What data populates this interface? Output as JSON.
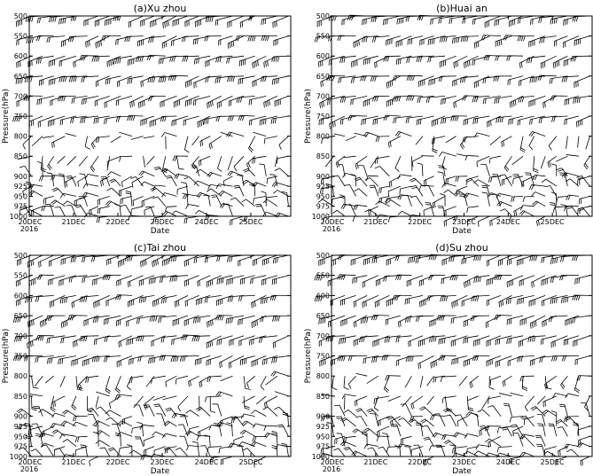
{
  "figure": {
    "xlabel": "Date",
    "ylabel": "Pressure(hPa)",
    "year_label": "2016"
  },
  "chart_data": [
    {
      "type": "wind-barb",
      "title": "(a)Xu zhou",
      "xlabel": "Date",
      "ylabel": "Pressure(hPa)",
      "x_ticks": [
        "20DEC",
        "21DEC",
        "22DEC",
        "23DEC",
        "24DEC",
        "25DEC"
      ],
      "x_sublabel": "2016",
      "y_ticks": [
        500,
        550,
        600,
        650,
        700,
        750,
        800,
        850,
        900,
        925,
        950,
        975,
        1000
      ],
      "xlim": [
        0,
        5.9
      ],
      "ylim": [
        1000,
        500
      ],
      "style": {
        "seed": 3
      }
    },
    {
      "type": "wind-barb",
      "title": "(b)Huai an",
      "xlabel": "Date",
      "ylabel": "Pressure(hPa)",
      "x_ticks": [
        "20DEC",
        "21DEC",
        "22DEC",
        "23DEC",
        "24DEC",
        "25DEC"
      ],
      "x_sublabel": "2016",
      "y_ticks": [
        500,
        550,
        600,
        650,
        700,
        750,
        800,
        850,
        900,
        925,
        950,
        975,
        1000
      ],
      "xlim": [
        0,
        5.9
      ],
      "ylim": [
        1000,
        500
      ],
      "style": {
        "seed": 7
      }
    },
    {
      "type": "wind-barb",
      "title": "(c)Tai zhou",
      "xlabel": "Date",
      "ylabel": "Pressure(hPa)",
      "x_ticks": [
        "20DEC",
        "21DEC",
        "22DEC",
        "23DEC",
        "24DEC",
        "25DEC"
      ],
      "x_sublabel": "2016",
      "y_ticks": [
        500,
        550,
        600,
        650,
        700,
        750,
        800,
        850,
        900,
        925,
        950,
        975,
        1000
      ],
      "xlim": [
        0,
        5.9
      ],
      "ylim": [
        1000,
        500
      ],
      "style": {
        "seed": 11
      }
    },
    {
      "type": "wind-barb",
      "title": "(d)Su zhou",
      "xlabel": "Date",
      "ylabel": "Pressure(hPa)",
      "x_ticks": [
        "20DEC",
        "21DEC",
        "22DEC",
        "23DEC",
        "24DEC",
        "25DEC"
      ],
      "x_sublabel": "2016",
      "y_ticks": [
        500,
        550,
        600,
        650,
        700,
        750,
        800,
        850,
        900,
        925,
        950,
        975,
        1000
      ],
      "xlim": [
        0,
        5.9
      ],
      "ylim": [
        1000,
        500
      ],
      "style": {
        "seed": 13
      }
    }
  ]
}
